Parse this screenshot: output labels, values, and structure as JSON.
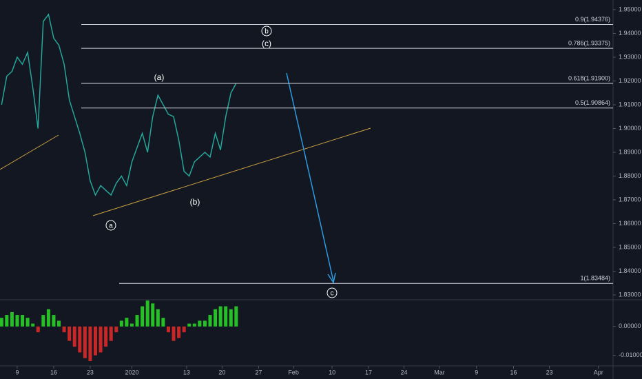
{
  "chart_data": [
    {
      "type": "line",
      "color": "#26a69a",
      "x": [
        -3,
        -2,
        -1,
        0,
        1,
        2,
        3,
        4,
        5,
        6,
        7,
        8,
        9,
        10,
        11,
        12,
        13,
        14,
        15,
        16,
        17,
        18,
        19,
        20,
        21,
        22,
        23,
        24,
        25,
        26,
        27,
        28,
        29,
        30,
        31,
        32,
        33,
        34,
        35,
        36,
        37,
        38,
        39,
        40,
        41,
        42
      ],
      "values": [
        1.91,
        1.922,
        1.924,
        1.93,
        1.927,
        1.932,
        1.917,
        1.9,
        1.945,
        1.948,
        1.938,
        1.935,
        1.927,
        1.912,
        1.905,
        1.898,
        1.89,
        1.878,
        1.872,
        1.876,
        1.874,
        1.872,
        1.877,
        1.88,
        1.876,
        1.886,
        1.892,
        1.898,
        1.89,
        1.905,
        1.914,
        1.91,
        1.906,
        1.905,
        1.895,
        1.882,
        1.88,
        1.886,
        1.888,
        1.89,
        1.888,
        1.898,
        1.891,
        1.905,
        1.915,
        1.919
      ],
      "xlim": [
        -3.3,
        114.3
      ],
      "ylim": [
        1.83,
        1.95
      ],
      "yticks": [
        {
          "value": 1.83,
          "label": "1.83000"
        },
        {
          "value": 1.84,
          "label": "1.84000"
        },
        {
          "value": 1.85,
          "label": "1.85000"
        },
        {
          "value": 1.86,
          "label": "1.86000"
        },
        {
          "value": 1.87,
          "label": "1.87000"
        },
        {
          "value": 1.88,
          "label": "1.88000"
        },
        {
          "value": 1.89,
          "label": "1.89000"
        },
        {
          "value": 1.9,
          "label": "1.90000"
        },
        {
          "value": 1.91,
          "label": "1.91000"
        },
        {
          "value": 1.92,
          "label": "1.92000"
        },
        {
          "value": 1.93,
          "label": "1.93000"
        },
        {
          "value": 1.94,
          "label": "1.94000"
        },
        {
          "value": 1.95,
          "label": "1.95000"
        }
      ],
      "levels": [
        {
          "value": 1.94376,
          "label": "0.9(1.94376)"
        },
        {
          "value": 1.93375,
          "label": "0.786(1.93375)"
        },
        {
          "value": 1.919,
          "label": "0.618(1.91900)"
        },
        {
          "value": 1.90864,
          "label": "0.5(1.90864)"
        },
        {
          "value": 1.83484,
          "label": "1(1.83484)"
        }
      ],
      "annotations": [
        "(a)",
        "(b)",
        "(c)",
        "a",
        "b",
        "c"
      ]
    },
    {
      "type": "bar",
      "color_pos": "#26c026",
      "color_neg": "#c62828",
      "x": [
        -3,
        -2,
        -1,
        0,
        1,
        2,
        3,
        4,
        5,
        6,
        7,
        8,
        9,
        10,
        11,
        12,
        13,
        14,
        15,
        16,
        17,
        18,
        19,
        20,
        21,
        22,
        23,
        24,
        25,
        26,
        27,
        28,
        29,
        30,
        31,
        32,
        33,
        34,
        35,
        36,
        37,
        38,
        39,
        40,
        41,
        42
      ],
      "values": [
        0.003,
        0.004,
        0.005,
        0.004,
        0.004,
        0.003,
        0.001,
        -0.002,
        0.004,
        0.006,
        0.004,
        0.002,
        -0.002,
        -0.005,
        -0.007,
        -0.009,
        -0.011,
        -0.012,
        -0.01,
        -0.009,
        -0.007,
        -0.005,
        -0.002,
        0.002,
        0.003,
        0.001,
        0.004,
        0.007,
        0.009,
        0.008,
        0.006,
        0.003,
        -0.002,
        -0.005,
        -0.004,
        -0.002,
        0.001,
        0.001,
        0.002,
        0.002,
        0.004,
        0.006,
        0.007,
        0.007,
        0.006,
        0.007
      ],
      "xlim": [
        -3.3,
        114.3
      ],
      "ylim": [
        -0.0132,
        0.0088
      ],
      "yticks": [
        {
          "value": 0,
          "label": "0.00000"
        },
        {
          "value": -0.01,
          "label": "-0.01000"
        }
      ],
      "xticks": [
        {
          "value": 0,
          "label": "9"
        },
        {
          "value": 7,
          "label": "16"
        },
        {
          "value": 14,
          "label": "23"
        },
        {
          "value": 22,
          "label": "2020"
        },
        {
          "value": 32.5,
          "label": "13"
        },
        {
          "value": 39.3,
          "label": "20"
        },
        {
          "value": 46.3,
          "label": "27"
        },
        {
          "value": 53,
          "label": "Feb"
        },
        {
          "value": 60.4,
          "label": "10"
        },
        {
          "value": 67.4,
          "label": "17"
        },
        {
          "value": 74.2,
          "label": "24"
        },
        {
          "value": 81,
          "label": "Mar"
        },
        {
          "value": 88.1,
          "label": "9"
        },
        {
          "value": 95.2,
          "label": "16"
        },
        {
          "value": 102.1,
          "label": "23"
        },
        {
          "value": 111.5,
          "label": "Apr"
        }
      ]
    }
  ]
}
